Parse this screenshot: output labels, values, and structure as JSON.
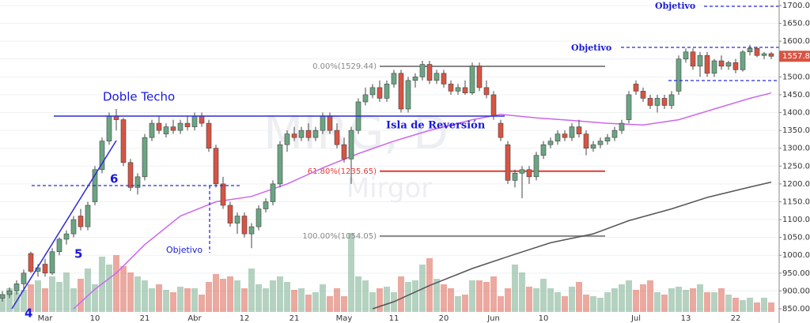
{
  "chart_data": {
    "type": "candlestick",
    "watermark": {
      "symbol": "MIRG, D",
      "name": "Mirgor"
    },
    "categories": [
      null,
      null,
      null,
      null,
      null,
      null,
      "Mar",
      null,
      null,
      null,
      null,
      null,
      null,
      "10",
      null,
      null,
      null,
      null,
      null,
      null,
      "21",
      null,
      null,
      null,
      null,
      null,
      null,
      "Abr",
      null,
      null,
      null,
      null,
      null,
      null,
      "12",
      null,
      null,
      null,
      null,
      null,
      null,
      "21",
      null,
      null,
      null,
      null,
      null,
      null,
      "May",
      null,
      null,
      null,
      null,
      null,
      null,
      "11",
      null,
      null,
      null,
      null,
      null,
      null,
      "20",
      null,
      null,
      null,
      null,
      null,
      null,
      "Jun",
      null,
      null,
      null,
      null,
      null,
      null,
      "10",
      null,
      null,
      null,
      null,
      null,
      null,
      null,
      null,
      null,
      null,
      null,
      null,
      "Jul",
      null,
      null,
      null,
      null,
      null,
      null,
      "13",
      null,
      null,
      null,
      null,
      null,
      null,
      "22",
      null,
      null,
      null,
      null,
      null
    ],
    "ohlc": [
      [
        880,
        900,
        870,
        890
      ],
      [
        890,
        910,
        880,
        900
      ],
      [
        900,
        930,
        890,
        920
      ],
      [
        920,
        960,
        900,
        950
      ],
      [
        1005,
        1010,
        950,
        955
      ],
      [
        955,
        975,
        940,
        965
      ],
      [
        975,
        990,
        940,
        950
      ],
      [
        950,
        1020,
        945,
        1010
      ],
      [
        1010,
        1050,
        1000,
        1045
      ],
      [
        1045,
        1070,
        1030,
        1060
      ],
      [
        1060,
        1110,
        1050,
        1100
      ],
      [
        1110,
        1130,
        1070,
        1080
      ],
      [
        1080,
        1150,
        1070,
        1140
      ],
      [
        1150,
        1250,
        1140,
        1240
      ],
      [
        1240,
        1330,
        1230,
        1320
      ],
      [
        1320,
        1400,
        1310,
        1390
      ],
      [
        1390,
        1410,
        1350,
        1380
      ],
      [
        1380,
        1385,
        1250,
        1260
      ],
      [
        1260,
        1270,
        1180,
        1190
      ],
      [
        1190,
        1230,
        1170,
        1220
      ],
      [
        1220,
        1340,
        1210,
        1330
      ],
      [
        1330,
        1380,
        1320,
        1370
      ],
      [
        1370,
        1390,
        1340,
        1350
      ],
      [
        1340,
        1370,
        1330,
        1360
      ],
      [
        1360,
        1380,
        1340,
        1350
      ],
      [
        1350,
        1380,
        1340,
        1370
      ],
      [
        1370,
        1390,
        1350,
        1360
      ],
      [
        1360,
        1400,
        1350,
        1390
      ],
      [
        1390,
        1400,
        1360,
        1370
      ],
      [
        1370,
        1380,
        1290,
        1300
      ],
      [
        1300,
        1310,
        1190,
        1200
      ],
      [
        1200,
        1220,
        1130,
        1140
      ],
      [
        1140,
        1150,
        1080,
        1090
      ],
      [
        1090,
        1120,
        1060,
        1110
      ],
      [
        1110,
        1120,
        1050,
        1060
      ],
      [
        1060,
        1090,
        1020,
        1080
      ],
      [
        1080,
        1140,
        1070,
        1130
      ],
      [
        1130,
        1160,
        1120,
        1150
      ],
      [
        1150,
        1210,
        1140,
        1200
      ],
      [
        1200,
        1320,
        1190,
        1310
      ],
      [
        1310,
        1350,
        1290,
        1340
      ],
      [
        1340,
        1360,
        1320,
        1330
      ],
      [
        1330,
        1360,
        1320,
        1350
      ],
      [
        1350,
        1370,
        1320,
        1330
      ],
      [
        1330,
        1360,
        1320,
        1350
      ],
      [
        1350,
        1400,
        1340,
        1390
      ],
      [
        1390,
        1400,
        1340,
        1350
      ],
      [
        1350,
        1370,
        1300,
        1310
      ],
      [
        1310,
        1330,
        1260,
        1270
      ],
      [
        1270,
        1360,
        1200,
        1350
      ],
      [
        1350,
        1440,
        1340,
        1430
      ],
      [
        1430,
        1470,
        1420,
        1450
      ],
      [
        1450,
        1480,
        1440,
        1470
      ],
      [
        1470,
        1490,
        1430,
        1440
      ],
      [
        1440,
        1490,
        1430,
        1480
      ],
      [
        1480,
        1520,
        1470,
        1510
      ],
      [
        1510,
        1520,
        1400,
        1410
      ],
      [
        1410,
        1500,
        1400,
        1490
      ],
      [
        1490,
        1510,
        1470,
        1500
      ],
      [
        1500,
        1545,
        1490,
        1535
      ],
      [
        1535,
        1545,
        1480,
        1490
      ],
      [
        1490,
        1520,
        1480,
        1510
      ],
      [
        1510,
        1520,
        1470,
        1480
      ],
      [
        1480,
        1490,
        1450,
        1460
      ],
      [
        1460,
        1480,
        1450,
        1470
      ],
      [
        1470,
        1490,
        1450,
        1455
      ],
      [
        1455,
        1540,
        1450,
        1530
      ],
      [
        1530,
        1540,
        1460,
        1470
      ],
      [
        1470,
        1490,
        1440,
        1450
      ],
      [
        1450,
        1460,
        1380,
        1390
      ],
      [
        1370,
        1380,
        1320,
        1330
      ],
      [
        1310,
        1320,
        1200,
        1210
      ],
      [
        1210,
        1240,
        1190,
        1230
      ],
      [
        1230,
        1250,
        1160,
        1240
      ],
      [
        1240,
        1250,
        1200,
        1220
      ],
      [
        1220,
        1290,
        1210,
        1280
      ],
      [
        1280,
        1320,
        1270,
        1310
      ],
      [
        1310,
        1330,
        1300,
        1320
      ],
      [
        1320,
        1350,
        1310,
        1340
      ],
      [
        1340,
        1350,
        1320,
        1330
      ],
      [
        1330,
        1370,
        1320,
        1360
      ],
      [
        1360,
        1380,
        1330,
        1340
      ],
      [
        1340,
        1350,
        1280,
        1300
      ],
      [
        1300,
        1320,
        1290,
        1310
      ],
      [
        1310,
        1330,
        1300,
        1320
      ],
      [
        1320,
        1340,
        1310,
        1330
      ],
      [
        1330,
        1360,
        1320,
        1350
      ],
      [
        1350,
        1380,
        1340,
        1370
      ],
      [
        1380,
        1460,
        1370,
        1450
      ],
      [
        1480,
        1490,
        1450,
        1460
      ],
      [
        1460,
        1470,
        1430,
        1440
      ],
      [
        1440,
        1450,
        1410,
        1420
      ],
      [
        1420,
        1450,
        1400,
        1440
      ],
      [
        1440,
        1450,
        1410,
        1420
      ],
      [
        1420,
        1460,
        1410,
        1450
      ],
      [
        1460,
        1560,
        1450,
        1550
      ],
      [
        1550,
        1580,
        1540,
        1570
      ],
      [
        1570,
        1580,
        1520,
        1530
      ],
      [
        1530,
        1570,
        1500,
        1560
      ],
      [
        1560,
        1570,
        1500,
        1510
      ],
      [
        1510,
        1550,
        1500,
        1545
      ],
      [
        1545,
        1560,
        1520,
        1530
      ],
      [
        1530,
        1545,
        1520,
        1540
      ],
      [
        1540,
        1550,
        1510,
        1520
      ],
      [
        1520,
        1575,
        1515,
        1570
      ],
      [
        1570,
        1590,
        1560,
        1580
      ],
      [
        1580,
        1585,
        1555,
        1560
      ],
      [
        1560,
        1570,
        1550,
        1565
      ],
      [
        1565,
        1570,
        1550,
        1557.8
      ]
    ],
    "volume": [
      22,
      30,
      25,
      28,
      35,
      40,
      30,
      45,
      38,
      50,
      30,
      42,
      55,
      35,
      70,
      60,
      72,
      58,
      50,
      45,
      40,
      30,
      35,
      28,
      25,
      32,
      30,
      30,
      22,
      38,
      48,
      42,
      45,
      40,
      30,
      55,
      35,
      30,
      40,
      45,
      38,
      28,
      30,
      22,
      25,
      35,
      20,
      30,
      20,
      100,
      45,
      40,
      25,
      30,
      32,
      25,
      45,
      38,
      40,
      60,
      68,
      42,
      35,
      30,
      20,
      22,
      40,
      40,
      38,
      45,
      20,
      30,
      60,
      50,
      32,
      30,
      42,
      30,
      25,
      20,
      32,
      38,
      22,
      20,
      18,
      25,
      30,
      35,
      40,
      28,
      35,
      40,
      25,
      22,
      30,
      32,
      28,
      30,
      35,
      25,
      25,
      30,
      22,
      18,
      15,
      18,
      12,
      18,
      12
    ],
    "up_color": "#6ba583",
    "down_color": "#d75442",
    "lines": [
      {
        "color": "#cc66ee",
        "x": [
          10,
          13,
          16,
          20,
          25,
          30,
          35,
          40,
          45,
          50,
          55,
          60,
          66,
          70,
          75,
          80,
          85,
          90,
          95,
          100,
          105,
          108
        ],
        "values": [
          850,
          905,
          950,
          1030,
          1110,
          1150,
          1165,
          1200,
          1245,
          1285,
          1320,
          1350,
          1380,
          1395,
          1385,
          1378,
          1370,
          1365,
          1380,
          1410,
          1440,
          1455
        ]
      },
      {
        "color": "#555555",
        "x": [
          52,
          55,
          60,
          66,
          72,
          77,
          83,
          88,
          94,
          99,
          105,
          108
        ],
        "values": [
          850,
          870,
          915,
          963,
          1003,
          1035,
          1060,
          1097,
          1130,
          1162,
          1191,
          1205
        ]
      }
    ],
    "fib": [
      {
        "label": "0.00%(1529.44)",
        "value": 1529.44,
        "color": "#888888"
      },
      {
        "label": "61.80%(1235.65)",
        "value": 1235.65,
        "color": "#e53935"
      },
      {
        "label": "100.00%(1054.05)",
        "value": 1054.05,
        "color": "#888888"
      }
    ],
    "last_price": {
      "value": 1557.8,
      "label": "1557.80"
    },
    "annotations": [
      "Doble Techo",
      "Isla de Reversión",
      "Objetivo",
      "Objetivo",
      "Objetivo",
      "6",
      "5",
      "4"
    ],
    "ylim": [
      850,
      1700
    ],
    "yticks": [
      {
        "value": 850,
        "label": "850.00"
      },
      {
        "value": 900,
        "label": "900.00"
      },
      {
        "value": 950,
        "label": "950.00"
      },
      {
        "value": 1000,
        "label": "1000.00"
      },
      {
        "value": 1050,
        "label": "1050.00"
      },
      {
        "value": 1100,
        "label": "1100.00"
      },
      {
        "value": 1150,
        "label": "1150.00"
      },
      {
        "value": 1200,
        "label": "1200.00"
      },
      {
        "value": 1250,
        "label": "1250.00"
      },
      {
        "value": 1300,
        "label": "1300.00"
      },
      {
        "value": 1350,
        "label": "1350.00"
      },
      {
        "value": 1400,
        "label": "1400.00"
      },
      {
        "value": 1450,
        "label": "1450.00"
      },
      {
        "value": 1500,
        "label": "1500.00"
      },
      {
        "value": 1550,
        "label": "1550.00"
      },
      {
        "value": 1600,
        "label": "1600.00"
      },
      {
        "value": 1650,
        "label": "1650.00"
      },
      {
        "value": 1700,
        "label": "1700.00"
      }
    ],
    "grid": true
  }
}
